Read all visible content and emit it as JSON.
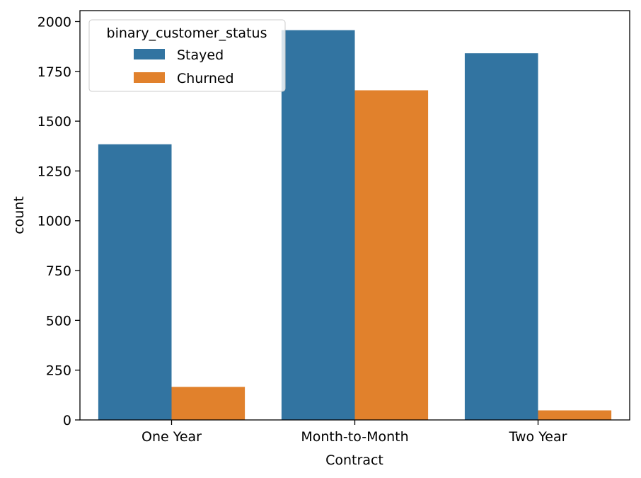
{
  "chart_data": {
    "type": "bar",
    "categories": [
      "One Year",
      "Month-to-Month",
      "Two Year"
    ],
    "series": [
      {
        "name": "Stayed",
        "color": "#3274a1",
        "values": [
          1384,
          1957,
          1841
        ]
      },
      {
        "name": "Churned",
        "color": "#e1812c",
        "values": [
          166,
          1655,
          48
        ]
      }
    ],
    "xlabel": "Contract",
    "ylabel": "count",
    "ylim": [
      0,
      2055
    ],
    "yticks": [
      0,
      250,
      500,
      750,
      1000,
      1250,
      1500,
      1750,
      2000
    ],
    "legend": {
      "title": "binary_customer_status",
      "placement": "top-left"
    },
    "grid": false
  }
}
